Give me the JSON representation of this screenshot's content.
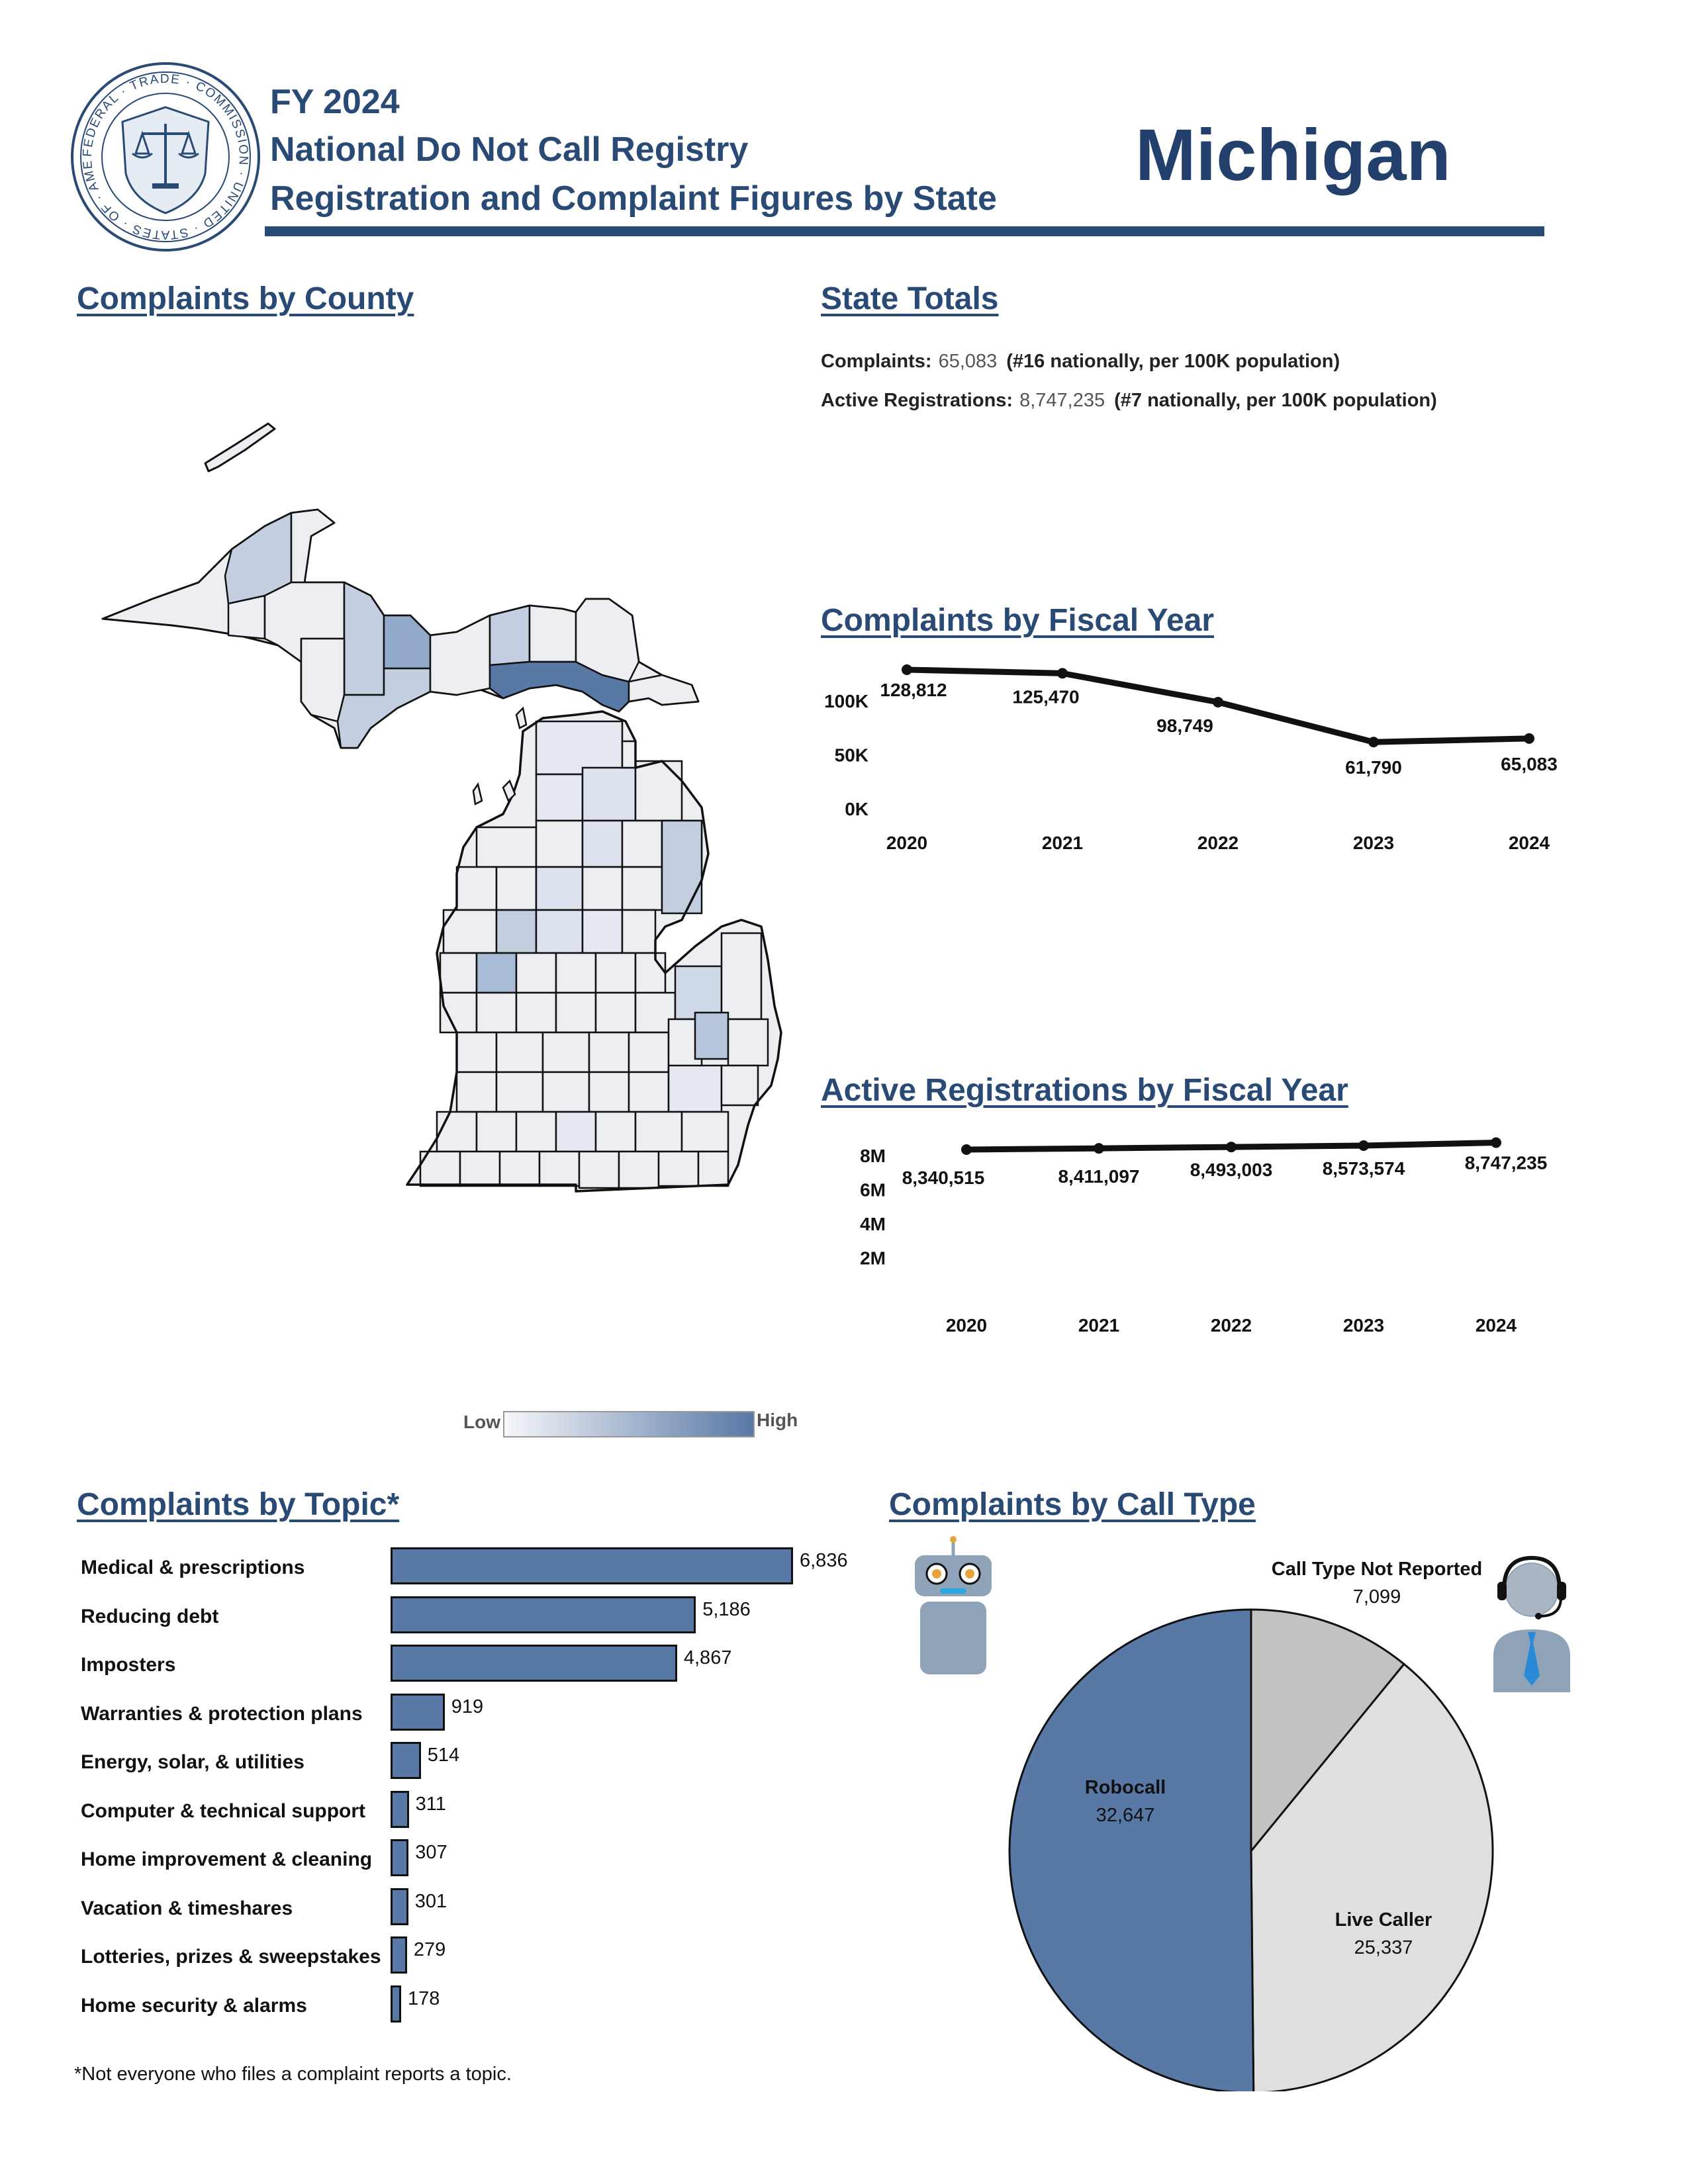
{
  "header": {
    "fy": "FY 2024",
    "registry": "National Do Not Call Registry",
    "subtitle": "Registration and Complaint Figures by State",
    "state": "Michigan",
    "seal_text": "FEDERAL TRADE COMMISSION · UNITED STATES OF AMERICA · MCMXV",
    "colors": {
      "primary": "#2a4a76",
      "bar": "#5878a6"
    }
  },
  "sections": {
    "county": "Complaints by County",
    "state_totals": "State Totals",
    "complaints_fy": "Complaints by Fiscal Year",
    "registrations_fy": "Active Registrations by Fiscal Year",
    "topic": "Complaints by Topic",
    "topic_asterisk": "*",
    "call_type": "Complaints by Call Type"
  },
  "totals": {
    "complaints_label": "Complaints:",
    "complaints_value": "65,083",
    "complaints_rank": "(#16 nationally, per 100K population)",
    "registrations_label": "Active Registrations:",
    "registrations_value": "8,747,235",
    "registrations_rank": "(#7 nationally, per 100K population)"
  },
  "legend": {
    "low": "Low",
    "high": "High"
  },
  "footnote": "*Not everyone who files a complaint reports a topic.",
  "icons": {
    "robocall": "robot-icon",
    "live": "operator-headset-icon",
    "seal": "ftc-seal-icon"
  },
  "chart_data": [
    {
      "id": "complaints_by_fy",
      "type": "line",
      "title": "Complaints by Fiscal Year",
      "x": [
        "2020",
        "2021",
        "2022",
        "2023",
        "2024"
      ],
      "values": [
        128812,
        125470,
        98749,
        61790,
        65083
      ],
      "value_labels": [
        "128,812",
        "125,470",
        "98,749",
        "61,790",
        "65,083"
      ],
      "yticks": [
        "0K",
        "50K",
        "100K"
      ],
      "ytick_values": [
        0,
        50000,
        100000
      ],
      "ylim": [
        0,
        130000
      ]
    },
    {
      "id": "registrations_by_fy",
      "type": "line",
      "title": "Active Registrations by Fiscal Year",
      "x": [
        "2020",
        "2021",
        "2022",
        "2023",
        "2024"
      ],
      "values": [
        8340515,
        8411097,
        8493003,
        8573574,
        8747235
      ],
      "value_labels": [
        "8,340,515",
        "8,411,097",
        "8,493,003",
        "8,573,574",
        "8,747,235"
      ],
      "yticks": [
        "2M",
        "4M",
        "6M",
        "8M"
      ],
      "ytick_values": [
        2000000,
        4000000,
        6000000,
        8000000
      ],
      "ylim": [
        0,
        9000000
      ]
    },
    {
      "id": "complaints_by_topic",
      "type": "bar",
      "title": "Complaints by Topic*",
      "categories": [
        "Medical & prescriptions",
        "Reducing debt",
        "Imposters",
        "Warranties & protection plans",
        "Energy, solar, & utilities",
        "Computer & technical support",
        "Home improvement & cleaning",
        "Vacation & timeshares",
        "Lotteries, prizes & sweepstakes",
        "Home security & alarms"
      ],
      "values": [
        6836,
        5186,
        4867,
        919,
        514,
        311,
        307,
        301,
        279,
        178
      ],
      "value_labels": [
        "6,836",
        "5,186",
        "4,867",
        "919",
        "514",
        "311",
        "307",
        "301",
        "279",
        "178"
      ]
    },
    {
      "id": "complaints_by_call_type",
      "type": "pie",
      "title": "Complaints by Call Type",
      "slices": [
        {
          "name": "Call Type Not Reported",
          "value": 7099,
          "value_label": "7,099",
          "color": "#c3c2c3"
        },
        {
          "name": "Live Caller",
          "value": 25337,
          "value_label": "25,337",
          "color": "#e0dfe0"
        },
        {
          "name": "Robocall",
          "value": 32647,
          "value_label": "32,647",
          "color": "#5878a6"
        }
      ]
    }
  ]
}
